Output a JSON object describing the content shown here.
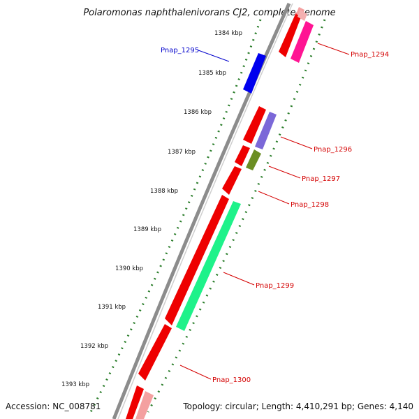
{
  "title": "Polaromonas naphthalenivorans CJ2, complete genome",
  "footer": {
    "accession": "Accession: NC_008781",
    "summary": "Topology: circular; Length: 4,410,291 bp; Genes: 4,140"
  },
  "ticks": [
    "1384 kbp",
    "1385 kbp",
    "1386 kbp",
    "1387 kbp",
    "1388 kbp",
    "1389 kbp",
    "1390 kbp",
    "1391 kbp",
    "1392 kbp",
    "1393 kbp"
  ],
  "colors": {
    "backbone": "#8c8c8c",
    "tick": "#2a7d2a",
    "cds": "#ee0000",
    "label_red": "#d40000",
    "label_blue": "#0000cc"
  },
  "genes": [
    {
      "label": "Pnap_1294",
      "color": "#ff1493"
    },
    {
      "label": "Pnap_1295",
      "color": "#0000ee"
    },
    {
      "label": "Pnap_1296",
      "color": "#7b68d8"
    },
    {
      "label": "Pnap_1297",
      "color": "#6b8e23"
    },
    {
      "label": "Pnap_1298",
      "color": "#ee0000"
    },
    {
      "label": "Pnap_1299",
      "color": "#1ef28a"
    },
    {
      "label": "Pnap_1300",
      "color": "#ee0000"
    }
  ]
}
